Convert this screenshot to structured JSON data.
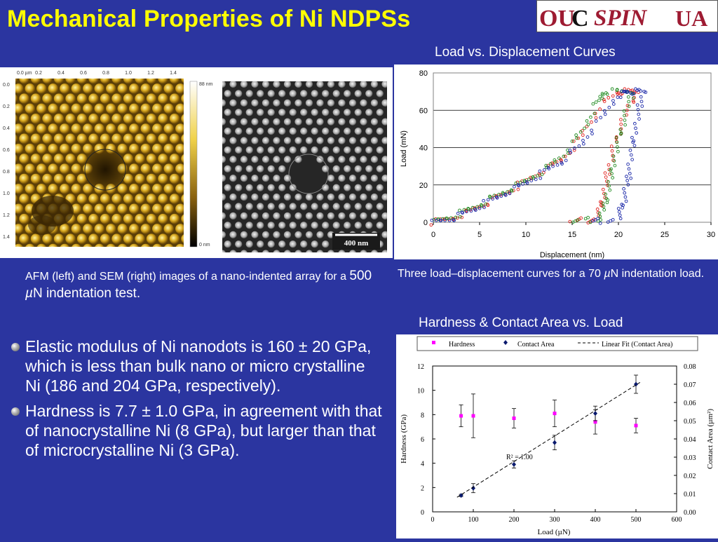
{
  "title": "Mechanical Properties of Ni NDPSs",
  "logo": {
    "part1": "OU",
    "part2": "C",
    "part3": "SPIN",
    "part4": "UA",
    "colors": {
      "crimson": "#9e1b32",
      "border": "#555555"
    }
  },
  "images": {
    "afm_x_unit_label": "0.0 µm",
    "afm_x_ticks": [
      "0.2",
      "0.4",
      "0.6",
      "0.8",
      "1.0",
      "1.2",
      "1.4"
    ],
    "afm_y_ticks": [
      "0.0",
      "0.2",
      "0.4",
      "0.6",
      "0.8",
      "1.0",
      "1.2",
      "1.4"
    ],
    "afm_scale_top": "88 nm",
    "afm_scale_bottom": "0 nm",
    "sem_scale_bar": "400 nm"
  },
  "load_displacement": {
    "section_title": "Load vs. Displacement Curves",
    "caption_prefix": "Three load–displacement curves for a 70 ",
    "caption_mu": "µ",
    "caption_suffix": "N indentation load."
  },
  "afm_caption": {
    "text": "AFM (left) and SEM (right) images of a nano-indented array  for a ",
    "big_value": "500 ",
    "mu": "µ",
    "big_suffix": "N indentation test."
  },
  "hardness_section": {
    "section_title": "Hardness & Contact Area vs. Load"
  },
  "bullets": [
    "Elastic modulus of Ni nanodots is 160 ± 20 GPa, which is less than bulk nano or micro crystalline Ni (186 and 204 GPa, respectively).",
    "Hardness is 7.7 ± 1.0 GPa, in agreement with that of nanocrystalline Ni (8 GPa), but  larger than that of microcrystalline Ni (3 GPa)."
  ],
  "chart_data": [
    {
      "type": "line",
      "xlabel": "Displacement (nm)",
      "ylabel": "Load (mN)",
      "xlim": [
        0,
        30
      ],
      "ylim": [
        0,
        80
      ],
      "x_ticks": [
        "0",
        "5",
        "10",
        "15",
        "20",
        "25",
        "30"
      ],
      "y_ticks": [
        "0",
        "20",
        "40",
        "60",
        "80"
      ],
      "grid": true,
      "series": [
        {
          "color": "#e0201c",
          "loading": [
            [
              0,
              0
            ],
            [
              2,
              2
            ],
            [
              4,
              6
            ],
            [
              6,
              11
            ],
            [
              8,
              16
            ],
            [
              10,
              22
            ],
            [
              12,
              28
            ],
            [
              14,
              34
            ],
            [
              16,
              46
            ],
            [
              18,
              62
            ],
            [
              20,
              70
            ]
          ],
          "hold": [
            [
              20,
              70
            ],
            [
              22,
              70
            ]
          ],
          "unloading": [
            [
              22,
              70
            ],
            [
              20.5,
              55
            ],
            [
              19.5,
              40
            ],
            [
              18.8,
              25
            ],
            [
              18.3,
              12
            ],
            [
              17.6,
              2
            ],
            [
              15,
              0
            ]
          ]
        },
        {
          "color": "#1e8a1e",
          "loading": [
            [
              0,
              0
            ],
            [
              2,
              3
            ],
            [
              4,
              7
            ],
            [
              6,
              12
            ],
            [
              8,
              17
            ],
            [
              10,
              22
            ],
            [
              12,
              28
            ],
            [
              14,
              36
            ],
            [
              16,
              48
            ],
            [
              17.5,
              62
            ],
            [
              18.5,
              70
            ]
          ],
          "hold": [
            [
              18.5,
              70
            ],
            [
              21.5,
              70
            ]
          ],
          "unloading": [
            [
              21.5,
              70
            ],
            [
              20.6,
              55
            ],
            [
              19.8,
              40
            ],
            [
              19.2,
              25
            ],
            [
              18.7,
              12
            ],
            [
              18,
              2
            ],
            [
              15,
              0
            ]
          ]
        },
        {
          "color": "#1a27a8",
          "loading": [
            [
              0,
              0
            ],
            [
              2,
              2
            ],
            [
              4,
              6
            ],
            [
              6,
              11
            ],
            [
              8,
              16
            ],
            [
              10,
              21
            ],
            [
              12,
              27
            ],
            [
              14,
              33
            ],
            [
              16,
              42
            ],
            [
              18,
              55
            ],
            [
              20,
              68
            ],
            [
              21,
              70
            ]
          ],
          "hold": [
            [
              21,
              70
            ],
            [
              22.7,
              70
            ]
          ],
          "unloading": [
            [
              22.7,
              70
            ],
            [
              22,
              55
            ],
            [
              21.5,
              40
            ],
            [
              21.1,
              25
            ],
            [
              20.6,
              12
            ],
            [
              20,
              2
            ],
            [
              17,
              0
            ]
          ]
        }
      ]
    },
    {
      "type": "scatter",
      "xlabel": "Load (µN)",
      "ylabel_left": "Hardness (GPa)",
      "ylabel_right": "Contact Area (µm²)",
      "xlim": [
        0,
        600
      ],
      "ylim_left": [
        0,
        12
      ],
      "ylim_right": [
        0,
        0.08
      ],
      "x_ticks": [
        "0",
        "100",
        "200",
        "300",
        "400",
        "500",
        "600"
      ],
      "y_ticks_left": [
        "0",
        "2",
        "4",
        "6",
        "8",
        "10",
        "12"
      ],
      "y_ticks_right": [
        "0.00",
        "0.01",
        "0.02",
        "0.03",
        "0.04",
        "0.05",
        "0.06",
        "0.07",
        "0.08"
      ],
      "legend": [
        "Hardness",
        "Contact Area",
        "Linear Fit (Contact Area)"
      ],
      "legend_placement": "top",
      "annotation": "R² = 1.00",
      "series": [
        {
          "name": "Hardness",
          "color": "#ff00ff",
          "axis": "left",
          "points": [
            [
              70,
              7.9,
              0.9
            ],
            [
              100,
              7.9,
              1.8
            ],
            [
              200,
              7.7,
              0.8
            ],
            [
              300,
              8.1,
              1.1
            ],
            [
              400,
              7.4,
              1.0
            ],
            [
              500,
              7.1,
              0.6
            ]
          ]
        },
        {
          "name": "Contact Area",
          "color": "#0a1a6e",
          "axis": "right",
          "points": [
            [
              70,
              0.009,
              0.0006
            ],
            [
              100,
              0.013,
              0.0025
            ],
            [
              200,
              0.026,
              0.002
            ],
            [
              300,
              0.038,
              0.004
            ],
            [
              400,
              0.054,
              0.004
            ],
            [
              500,
              0.07,
              0.005
            ]
          ]
        },
        {
          "name": "Linear Fit (Contact Area)",
          "color": "#000000",
          "axis": "right",
          "dashed": true,
          "points": [
            [
              60,
              0.008
            ],
            [
              510,
              0.071
            ]
          ]
        }
      ]
    }
  ]
}
